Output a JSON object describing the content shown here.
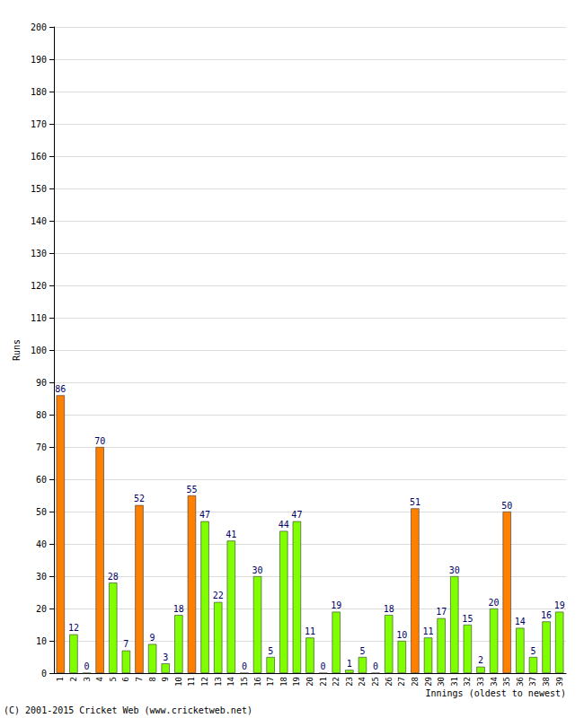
{
  "chart_data": {
    "type": "bar",
    "x_label": "Innings (oldest to newest)",
    "y_label": "Runs",
    "annotations": [
      "(C) 2001-2015 Cricket Web (www.cricketweb.net)"
    ],
    "categories": [
      "1",
      "2",
      "3",
      "4",
      "5",
      "6",
      "7",
      "8",
      "9",
      "10",
      "11",
      "12",
      "13",
      "14",
      "15",
      "16",
      "17",
      "18",
      "19",
      "20",
      "21",
      "22",
      "23",
      "24",
      "25",
      "26",
      "27",
      "28",
      "29",
      "30",
      "31",
      "32",
      "33",
      "34",
      "35",
      "36",
      "37",
      "38",
      "39"
    ],
    "values": [
      86,
      12,
      0,
      70,
      28,
      7,
      52,
      9,
      3,
      18,
      55,
      47,
      22,
      41,
      0,
      30,
      5,
      44,
      47,
      11,
      0,
      19,
      1,
      5,
      0,
      18,
      10,
      51,
      11,
      17,
      30,
      15,
      2,
      20,
      50,
      14,
      5,
      16,
      19
    ],
    "colors": [
      "#ff8000",
      "#80ff00",
      "#80ff00",
      "#ff8000",
      "#80ff00",
      "#80ff00",
      "#ff8000",
      "#80ff00",
      "#80ff00",
      "#80ff00",
      "#ff8000",
      "#80ff00",
      "#80ff00",
      "#80ff00",
      "#80ff00",
      "#80ff00",
      "#80ff00",
      "#80ff00",
      "#80ff00",
      "#80ff00",
      "#80ff00",
      "#80ff00",
      "#80ff00",
      "#80ff00",
      "#80ff00",
      "#80ff00",
      "#80ff00",
      "#ff8000",
      "#80ff00",
      "#80ff00",
      "#80ff00",
      "#80ff00",
      "#80ff00",
      "#80ff00",
      "#ff8000",
      "#80ff00",
      "#80ff00",
      "#80ff00",
      "#80ff00"
    ],
    "ylim": [
      0,
      200
    ],
    "yticks": [
      0,
      10,
      20,
      30,
      40,
      50,
      60,
      70,
      80,
      90,
      100,
      110,
      120,
      130,
      140,
      150,
      160,
      170,
      180,
      190,
      200
    ],
    "grid": true,
    "data_labels": true
  }
}
